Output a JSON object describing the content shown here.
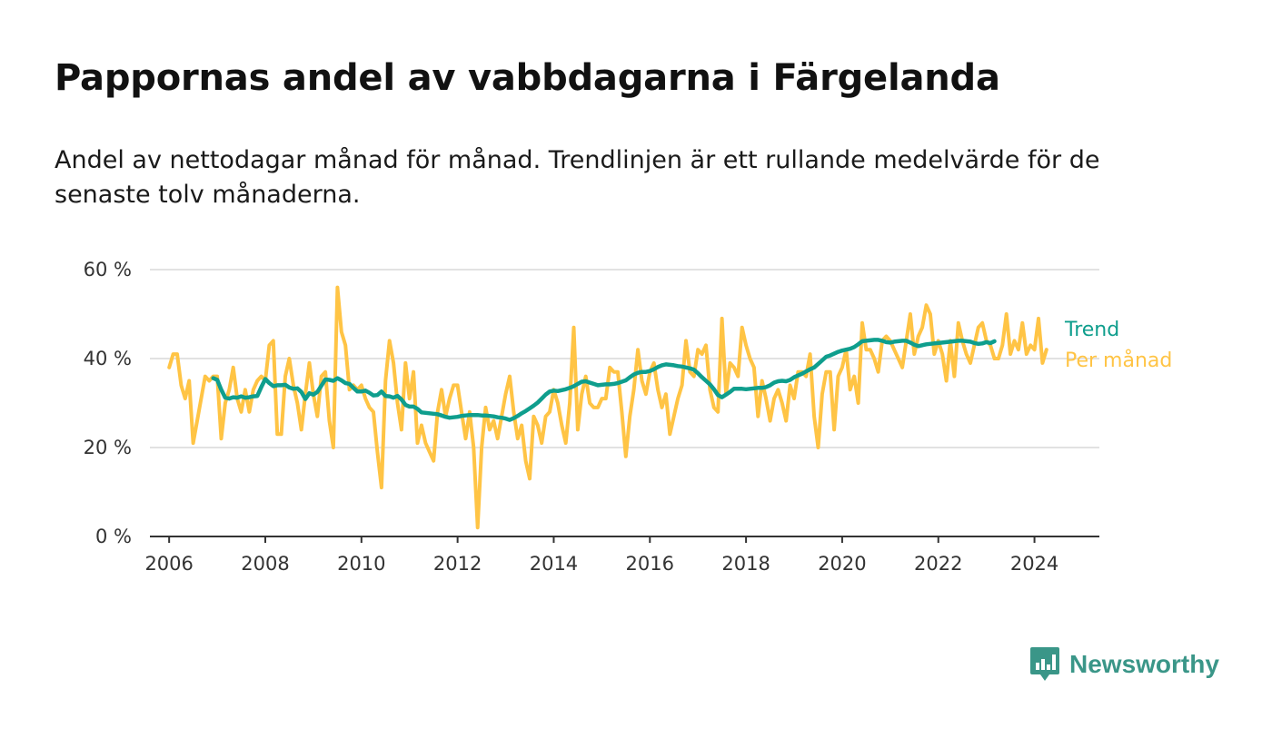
{
  "header": {
    "title": "Pappornas andel av vabbdagarna i Färgelanda",
    "subtitle": "Andel av nettodagar månad för månad. Trendlinjen är ett rullande medelvärde för de senaste tolv månaderna."
  },
  "brand": {
    "name": "Newsworthy",
    "icon": "newsworthy-logo-icon",
    "color": "#3a9688"
  },
  "chart_data": {
    "type": "line",
    "title": "Pappornas andel av vabbdagarna i Färgelanda",
    "subtitle": "Andel av nettodagar månad för månad. Trendlinjen är ett rullande medelvärde för de senaste tolv månaderna.",
    "xlabel": "",
    "ylabel": "",
    "xlim": [
      2005.6,
      2025.35
    ],
    "ylim": [
      0,
      60
    ],
    "y_ticks": [
      0,
      20,
      40,
      60
    ],
    "y_tick_labels": [
      "0 %",
      "20 %",
      "40 %",
      "60 %"
    ],
    "x_ticks": [
      2006,
      2008,
      2010,
      2012,
      2014,
      2016,
      2018,
      2020,
      2022,
      2024
    ],
    "x_tick_labels": [
      "2006",
      "2008",
      "2010",
      "2012",
      "2014",
      "2016",
      "2018",
      "2020",
      "2022",
      "2024"
    ],
    "grid": true,
    "legend": "right, at line ends",
    "series": [
      {
        "name": "Per månad",
        "color": "#ffc445",
        "start": "2006-01",
        "values": [
          38,
          41,
          41,
          34,
          31,
          35,
          21,
          26,
          31,
          36,
          35,
          36,
          36,
          22,
          30,
          33,
          38,
          31,
          28,
          33,
          28,
          33,
          35,
          36,
          35,
          43,
          44,
          23,
          23,
          36,
          40,
          34,
          30,
          24,
          32,
          39,
          32,
          27,
          36,
          37,
          26,
          20,
          56,
          46,
          43,
          33,
          34,
          33,
          34,
          31,
          29,
          28,
          19,
          11,
          35,
          44,
          39,
          30,
          24,
          39,
          31,
          37,
          21,
          25,
          21,
          19,
          17,
          28,
          33,
          27,
          31,
          34,
          34,
          28,
          22,
          28,
          20,
          2,
          20,
          29,
          24,
          26,
          22,
          27,
          32,
          36,
          28,
          22,
          25,
          17,
          13,
          27,
          25,
          21,
          27,
          28,
          33,
          30,
          25,
          21,
          30,
          47,
          24,
          32,
          36,
          30,
          29,
          29,
          31,
          31,
          38,
          37,
          37,
          28,
          18,
          27,
          33,
          42,
          35,
          32,
          37,
          39,
          33,
          29,
          32,
          23,
          27,
          31,
          34,
          44,
          37,
          36,
          42,
          41,
          43,
          33,
          29,
          28,
          49,
          32,
          39,
          38,
          36,
          47,
          43,
          40,
          38,
          27,
          35,
          31,
          26,
          31,
          33,
          30,
          26,
          34,
          31,
          37,
          37,
          36,
          41,
          27,
          20,
          32,
          37,
          37,
          24,
          36,
          38,
          42,
          33,
          36,
          30,
          48,
          42,
          42,
          40,
          37,
          44,
          45,
          44,
          42,
          40,
          38,
          44,
          50,
          41,
          45,
          47,
          52,
          50,
          41,
          44,
          41,
          35,
          44,
          36,
          48,
          44,
          41,
          39,
          43,
          47,
          48,
          44,
          43,
          40,
          40,
          43,
          50,
          41,
          44,
          42,
          48,
          41,
          43,
          42,
          49,
          39,
          42
        ]
      },
      {
        "name": "Trend",
        "color": "#0f9e8d",
        "start": "2006-12",
        "values": [
          35.6,
          35.2,
          33,
          31.2,
          31,
          31.3,
          31.2,
          31.5,
          31.2,
          31.3,
          31.5,
          31.6,
          33.6,
          35.4,
          34.5,
          33.8,
          34,
          34,
          34.1,
          33.5,
          33.2,
          33.3,
          32.5,
          30.9,
          32.2,
          31.9,
          32.5,
          33.9,
          35.3,
          35.2,
          35,
          35.6,
          35.1,
          34.5,
          34.3,
          33.4,
          32.6,
          32.6,
          32.8,
          32.3,
          31.7,
          31.8,
          32.6,
          31.6,
          31.5,
          31.2,
          31.6,
          30.8,
          29.6,
          29.2,
          29.2,
          28.7,
          27.9,
          27.8,
          27.7,
          27.6,
          27.5,
          27.2,
          26.9,
          26.7,
          26.8,
          26.9,
          27.1,
          27.2,
          27.3,
          27.3,
          27.3,
          27.2,
          27.2,
          27.1,
          27,
          26.8,
          26.7,
          26.5,
          26.2,
          26.6,
          27.1,
          27.7,
          28.2,
          28.8,
          29.4,
          30.1,
          31,
          31.9,
          32.6,
          32.8,
          32.7,
          32.9,
          33.1,
          33.4,
          33.8,
          34.3,
          34.8,
          34.9,
          34.6,
          34.3,
          34,
          34.1,
          34.2,
          34.2,
          34.3,
          34.5,
          34.8,
          35.1,
          35.8,
          36.4,
          36.8,
          37,
          37,
          37.2,
          37.6,
          38.1,
          38.5,
          38.7,
          38.6,
          38.5,
          38.3,
          38.2,
          38,
          37.8,
          37.5,
          36.7,
          35.8,
          35,
          34.2,
          33.1,
          31.8,
          31.3,
          31.9,
          32.5,
          33.2,
          33.2,
          33.2,
          33.1,
          33.2,
          33.3,
          33.4,
          33.4,
          33.6,
          34,
          34.6,
          34.9,
          35,
          34.9,
          35.2,
          35.8,
          36.2,
          36.6,
          37.1,
          37.6,
          38,
          38.8,
          39.6,
          40.4,
          40.7,
          41.1,
          41.5,
          41.8,
          42,
          42.2,
          42.6,
          43.2,
          43.9,
          44,
          44.1,
          44.2,
          44.2,
          44,
          43.7,
          43.6,
          43.8,
          43.9,
          44,
          44,
          43.6,
          43.1,
          42.8,
          43,
          43.2,
          43.3,
          43.4,
          43.5,
          43.6,
          43.7,
          43.8,
          43.9,
          44,
          44,
          43.9,
          43.8,
          43.5,
          43.3,
          43.4,
          43.7,
          43.5,
          43.9
        ]
      }
    ]
  }
}
